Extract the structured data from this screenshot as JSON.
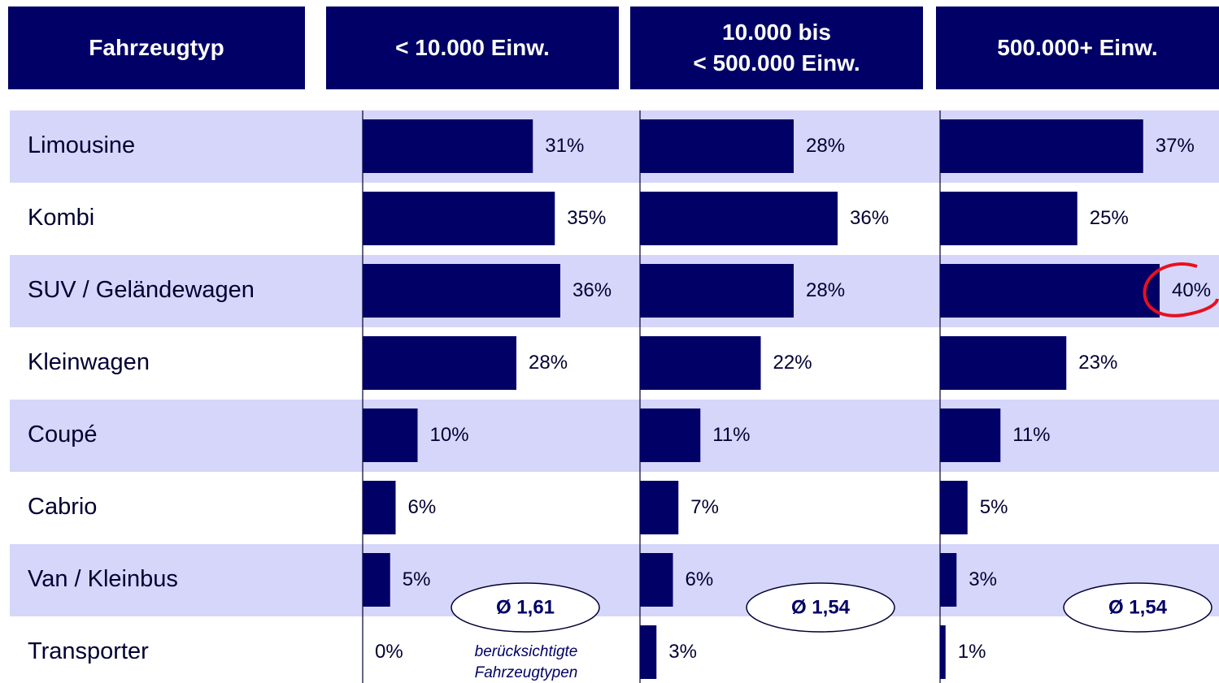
{
  "chart_data": {
    "type": "bar",
    "row_header": "Fahrzeugtyp",
    "categories": [
      "Limousine",
      "Kombi",
      "SUV / Geländewagen",
      "Kleinwagen",
      "Coupé",
      "Cabrio",
      "Van / Kleinbus",
      "Transporter"
    ],
    "series": [
      {
        "name": "< 10.000 Einw.",
        "color": "#000066",
        "values": [
          31,
          35,
          36,
          28,
          10,
          6,
          5,
          0
        ],
        "value_labels": [
          "31%",
          "35%",
          "36%",
          "28%",
          "10%",
          "6%",
          "5%",
          "0%"
        ],
        "annotation": "Ø 1,61"
      },
      {
        "name": "10.000 bis\n< 500.000 Einw.",
        "color": "#000066",
        "values": [
          28,
          36,
          28,
          22,
          11,
          7,
          6,
          3
        ],
        "value_labels": [
          "28%",
          "36%",
          "28%",
          "22%",
          "11%",
          "7%",
          "6%",
          "3%"
        ],
        "annotation": "Ø 1,54"
      },
      {
        "name": "500.000+ Einw.",
        "color": "#000066",
        "values": [
          37,
          25,
          40,
          23,
          11,
          5,
          3,
          1
        ],
        "value_labels": [
          "37%",
          "25%",
          "40%",
          "23%",
          "11%",
          "5%",
          "3%",
          "1%"
        ],
        "annotation": "Ø 1,54"
      }
    ],
    "footnote": [
      "berücksichtigte",
      "Fahrzeugtypen"
    ]
  }
}
